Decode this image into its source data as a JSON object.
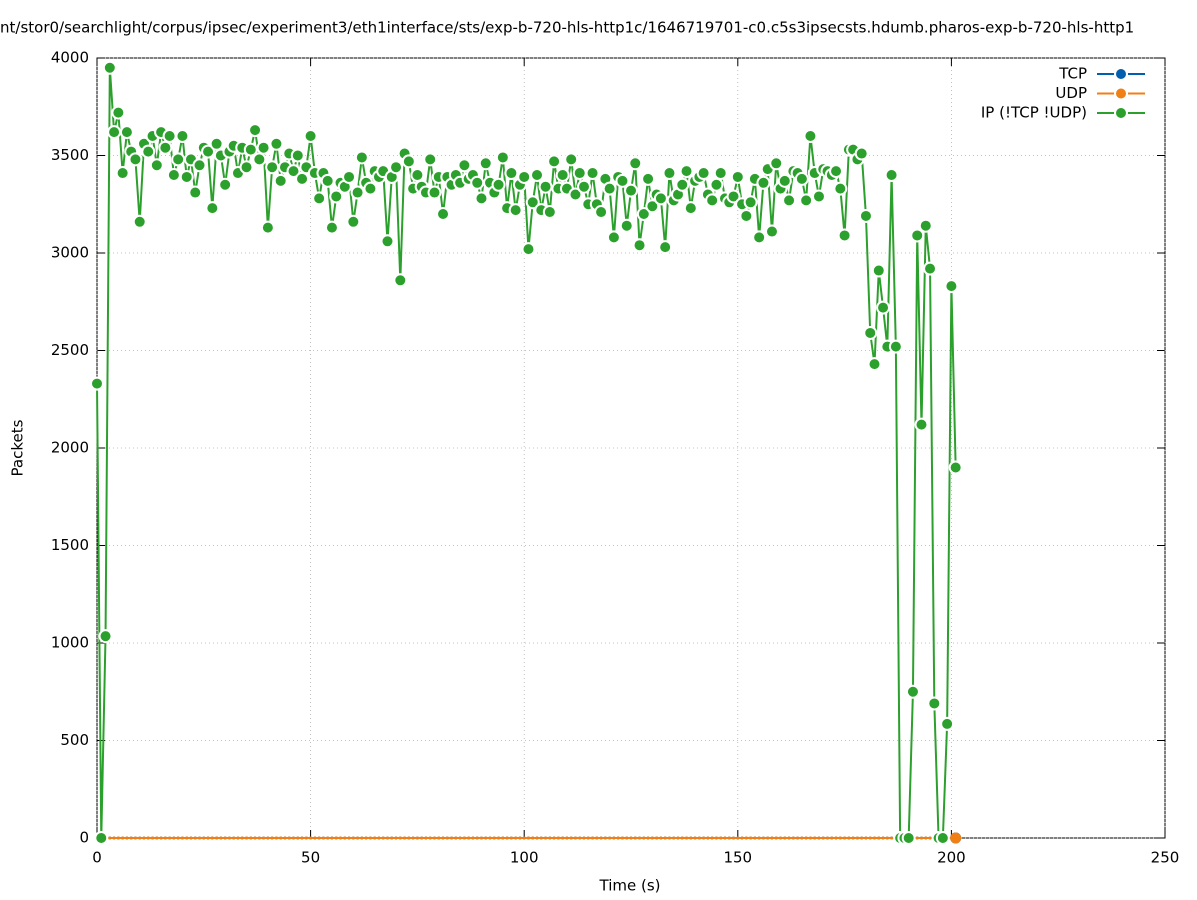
{
  "chart_data": {
    "type": "line",
    "title": "nt/stor0/searchlight/corpus/ipsec/experiment3/eth1interface/sts/exp-b-720-hls-http1c/1646719701-c0.c5s3ipsecsts.hdumb.pharos-exp-b-720-hls-http1",
    "x_label": "Time (s)",
    "y_label": "Packets",
    "xlim": [
      0,
      250
    ],
    "xticks": [
      0,
      50,
      100,
      150,
      200,
      250
    ],
    "ylim": [
      0,
      4000
    ],
    "yticks": [
      0,
      500,
      1000,
      1500,
      2000,
      2500,
      3000,
      3500,
      4000
    ],
    "grid": true,
    "legend": "top-right",
    "x": [
      0,
      1,
      2,
      3,
      4,
      5,
      6,
      7,
      8,
      9,
      10,
      11,
      12,
      13,
      14,
      15,
      16,
      17,
      18,
      19,
      20,
      21,
      22,
      23,
      24,
      25,
      26,
      27,
      28,
      29,
      30,
      31,
      32,
      33,
      34,
      35,
      36,
      37,
      38,
      39,
      40,
      41,
      42,
      43,
      44,
      45,
      46,
      47,
      48,
      49,
      50,
      51,
      52,
      53,
      54,
      55,
      56,
      57,
      58,
      59,
      60,
      61,
      62,
      63,
      64,
      65,
      66,
      67,
      68,
      69,
      70,
      71,
      72,
      73,
      74,
      75,
      76,
      77,
      78,
      79,
      80,
      81,
      82,
      83,
      84,
      85,
      86,
      87,
      88,
      89,
      90,
      91,
      92,
      93,
      94,
      95,
      96,
      97,
      98,
      99,
      100,
      101,
      102,
      103,
      104,
      105,
      106,
      107,
      108,
      109,
      110,
      111,
      112,
      113,
      114,
      115,
      116,
      117,
      118,
      119,
      120,
      121,
      122,
      123,
      124,
      125,
      126,
      127,
      128,
      129,
      130,
      131,
      132,
      133,
      134,
      135,
      136,
      137,
      138,
      139,
      140,
      141,
      142,
      143,
      144,
      145,
      146,
      147,
      148,
      149,
      150,
      151,
      152,
      153,
      154,
      155,
      156,
      157,
      158,
      159,
      160,
      161,
      162,
      163,
      164,
      165,
      166,
      167,
      168,
      169,
      170,
      171,
      172,
      173,
      174,
      175,
      176,
      177,
      178,
      179,
      180,
      181,
      182,
      183,
      184,
      185,
      186,
      187,
      188,
      189,
      190,
      191,
      192,
      193,
      194,
      195,
      196,
      197,
      198,
      199,
      200,
      201
    ],
    "series": [
      {
        "name": "TCP",
        "color": "#0060ad",
        "values": [
          0,
          0,
          0,
          0,
          0,
          0,
          0,
          0,
          0,
          0,
          0,
          0,
          0,
          0,
          0,
          0,
          0,
          0,
          0,
          0,
          0,
          0,
          0,
          0,
          0,
          0,
          0,
          0,
          0,
          0,
          0,
          0,
          0,
          0,
          0,
          0,
          0,
          0,
          0,
          0,
          0,
          0,
          0,
          0,
          0,
          0,
          0,
          0,
          0,
          0,
          0,
          0,
          0,
          0,
          0,
          0,
          0,
          0,
          0,
          0,
          0,
          0,
          0,
          0,
          0,
          0,
          0,
          0,
          0,
          0,
          0,
          0,
          0,
          0,
          0,
          0,
          0,
          0,
          0,
          0,
          0,
          0,
          0,
          0,
          0,
          0,
          0,
          0,
          0,
          0,
          0,
          0,
          0,
          0,
          0,
          0,
          0,
          0,
          0,
          0,
          0,
          0,
          0,
          0,
          0,
          0,
          0,
          0,
          0,
          0,
          0,
          0,
          0,
          0,
          0,
          0,
          0,
          0,
          0,
          0,
          0,
          0,
          0,
          0,
          0,
          0,
          0,
          0,
          0,
          0,
          0,
          0,
          0,
          0,
          0,
          0,
          0,
          0,
          0,
          0,
          0,
          0,
          0,
          0,
          0,
          0,
          0,
          0,
          0,
          0,
          0,
          0,
          0,
          0,
          0,
          0,
          0,
          0,
          0,
          0,
          0,
          0,
          0,
          0,
          0,
          0,
          0,
          0,
          0,
          0,
          0,
          0,
          0,
          0,
          0,
          0,
          0,
          0,
          0,
          0,
          0,
          0,
          0,
          0,
          0,
          0,
          0,
          0,
          0,
          0,
          0,
          0,
          0,
          0,
          0,
          0,
          0,
          0,
          0,
          0,
          0,
          0
        ]
      },
      {
        "name": "UDP",
        "color": "#f07f14",
        "values": [
          0,
          0,
          0,
          0,
          0,
          0,
          0,
          0,
          0,
          0,
          0,
          0,
          0,
          0,
          0,
          0,
          0,
          0,
          0,
          0,
          0,
          0,
          0,
          0,
          0,
          0,
          0,
          0,
          0,
          0,
          0,
          0,
          0,
          0,
          0,
          0,
          0,
          0,
          0,
          0,
          0,
          0,
          0,
          0,
          0,
          0,
          0,
          0,
          0,
          0,
          0,
          0,
          0,
          0,
          0,
          0,
          0,
          0,
          0,
          0,
          0,
          0,
          0,
          0,
          0,
          0,
          0,
          0,
          0,
          0,
          0,
          0,
          0,
          0,
          0,
          0,
          0,
          0,
          0,
          0,
          0,
          0,
          0,
          0,
          0,
          0,
          0,
          0,
          0,
          0,
          0,
          0,
          0,
          0,
          0,
          0,
          0,
          0,
          0,
          0,
          0,
          0,
          0,
          0,
          0,
          0,
          0,
          0,
          0,
          0,
          0,
          0,
          0,
          0,
          0,
          0,
          0,
          0,
          0,
          0,
          0,
          0,
          0,
          0,
          0,
          0,
          0,
          0,
          0,
          0,
          0,
          0,
          0,
          0,
          0,
          0,
          0,
          0,
          0,
          0,
          0,
          0,
          0,
          0,
          0,
          0,
          0,
          0,
          0,
          0,
          0,
          0,
          0,
          0,
          0,
          0,
          0,
          0,
          0,
          0,
          0,
          0,
          0,
          0,
          0,
          0,
          0,
          0,
          0,
          0,
          0,
          0,
          0,
          0,
          0,
          0,
          0,
          0,
          0,
          0,
          0,
          0,
          0,
          0,
          0,
          0,
          0,
          0,
          0,
          0,
          0,
          0,
          0,
          0,
          0,
          0,
          0,
          0,
          0,
          0,
          0,
          0
        ]
      },
      {
        "name": "IP (!TCP  !UDP)",
        "color": "#2ca02c",
        "values": [
          2330,
          0,
          1035,
          3950,
          3620,
          3720,
          3410,
          3620,
          3520,
          3480,
          3160,
          3560,
          3520,
          3600,
          3450,
          3620,
          3540,
          3600,
          3400,
          3480,
          3600,
          3390,
          3480,
          3310,
          3450,
          3540,
          3520,
          3230,
          3560,
          3500,
          3350,
          3520,
          3550,
          3410,
          3540,
          3440,
          3530,
          3630,
          3480,
          3540,
          3130,
          3440,
          3560,
          3370,
          3440,
          3510,
          3420,
          3500,
          3380,
          3440,
          3600,
          3410,
          3280,
          3410,
          3370,
          3130,
          3290,
          3360,
          3340,
          3390,
          3160,
          3310,
          3490,
          3360,
          3330,
          3420,
          3390,
          3420,
          3060,
          3390,
          3440,
          2860,
          3510,
          3470,
          3330,
          3400,
          3340,
          3310,
          3480,
          3310,
          3390,
          3200,
          3390,
          3350,
          3400,
          3360,
          3450,
          3380,
          3400,
          3360,
          3280,
          3460,
          3360,
          3310,
          3350,
          3490,
          3230,
          3410,
          3220,
          3350,
          3390,
          3020,
          3260,
          3400,
          3220,
          3340,
          3210,
          3470,
          3330,
          3400,
          3330,
          3480,
          3300,
          3410,
          3340,
          3250,
          3410,
          3250,
          3210,
          3380,
          3330,
          3080,
          3390,
          3370,
          3140,
          3320,
          3460,
          3040,
          3200,
          3380,
          3240,
          3300,
          3280,
          3030,
          3410,
          3270,
          3300,
          3350,
          3420,
          3230,
          3370,
          3390,
          3410,
          3300,
          3270,
          3350,
          3410,
          3280,
          3260,
          3290,
          3390,
          3250,
          3190,
          3260,
          3380,
          3080,
          3360,
          3430,
          3110,
          3460,
          3330,
          3370,
          3270,
          3420,
          3410,
          3380,
          3270,
          3600,
          3410,
          3290,
          3430,
          3420,
          3400,
          3420,
          3330,
          3090,
          3530,
          3530,
          3480,
          3510,
          3190,
          2590,
          2430,
          2910,
          2720,
          2520,
          3400,
          2520,
          0,
          0,
          0,
          750,
          3090,
          2120,
          3140,
          2920,
          690,
          0,
          0,
          585,
          2830,
          1900
        ]
      }
    ]
  }
}
